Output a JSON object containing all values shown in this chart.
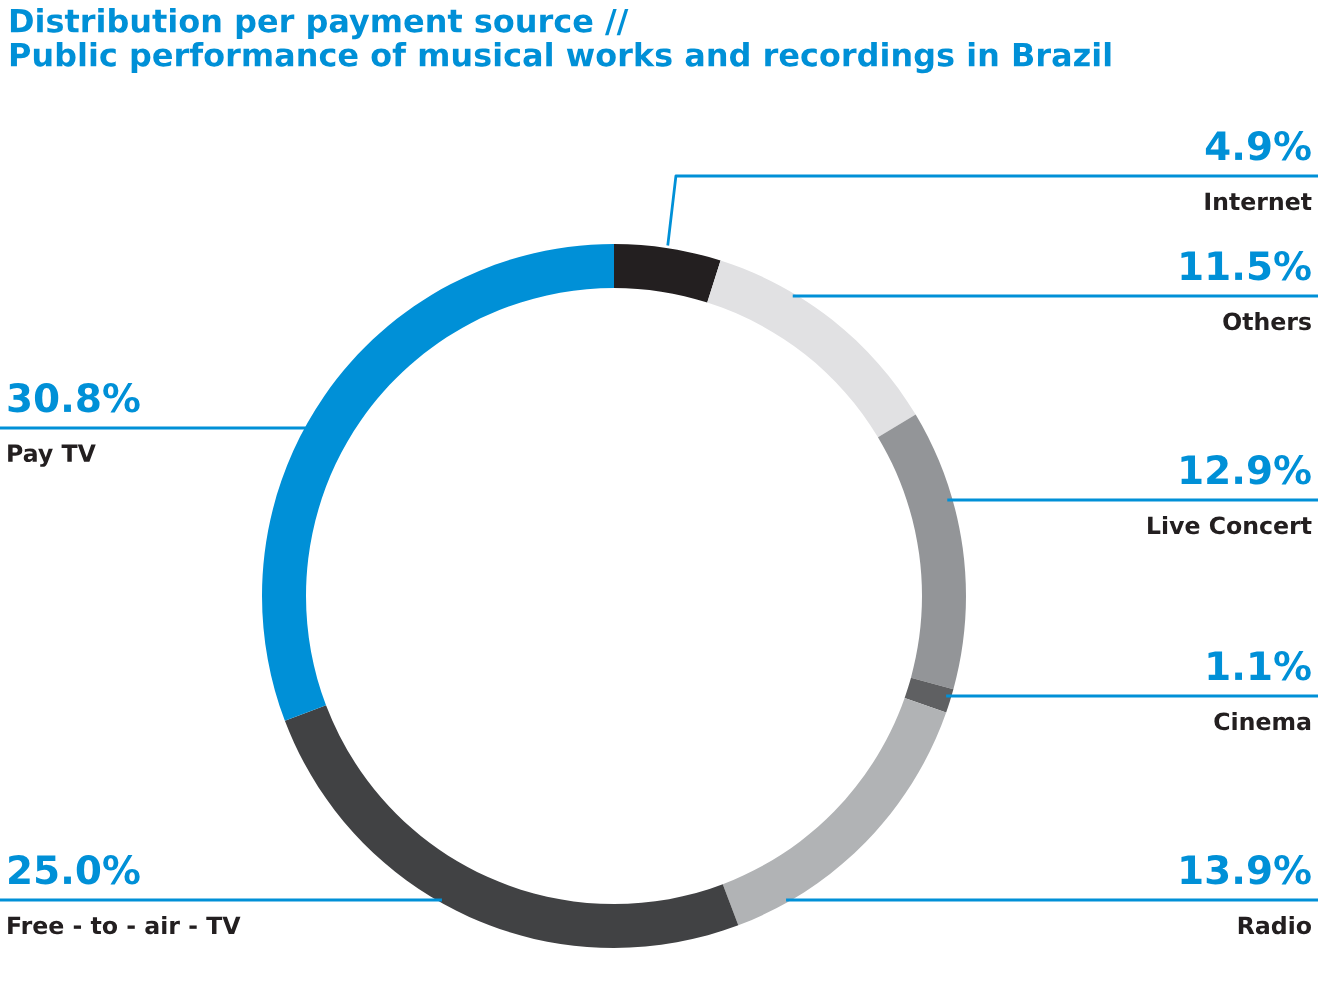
{
  "chart_data": {
    "type": "donut",
    "title": "Distribution per payment source //",
    "subtitle": "Public performance of musical works and recordings in Brazil",
    "categories": [
      "Internet",
      "Others",
      "Live Concert",
      "Cinema",
      "Radio",
      "Free - to - air - TV",
      "Pay TV"
    ],
    "values": [
      4.9,
      11.5,
      12.9,
      1.1,
      13.9,
      25.0,
      30.8
    ],
    "value_labels": [
      "4.9%",
      "11.5%",
      "12.9%",
      "1.1%",
      "13.9%",
      "25.0%",
      "30.8%"
    ],
    "colors": [
      "#231f20",
      "#e1e1e3",
      "#939598",
      "#5f6062",
      "#b1b3b5",
      "#414244",
      "#0090d7"
    ],
    "legend": false
  }
}
